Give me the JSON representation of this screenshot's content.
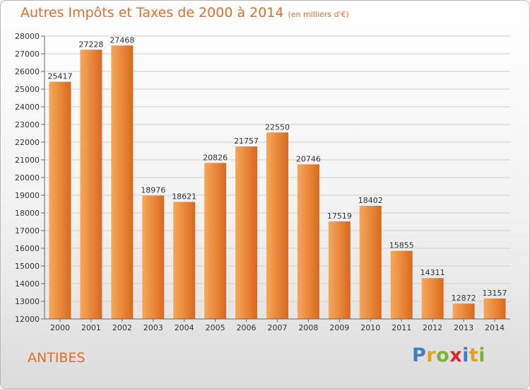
{
  "title": "Autres Impôts et Taxes de 2000 à 2014",
  "unit_note": "(en milliers d'€)",
  "city": "ANTIBES",
  "brand": {
    "letters": [
      {
        "ch": "P",
        "color": "#3f7fc8"
      },
      {
        "ch": "r",
        "color": "#e6a01e"
      },
      {
        "ch": "o",
        "color": "#7bb431"
      },
      {
        "ch": "x",
        "color": "#d9262c"
      },
      {
        "ch": "i",
        "color": "#3f7fc8"
      },
      {
        "ch": "t",
        "color": "#e6a01e"
      },
      {
        "ch": "i",
        "color": "#7bb431"
      }
    ]
  },
  "colors": {
    "accent": "#e0702a",
    "bar_light": "#f7a85a",
    "bar_dark": "#d9691e",
    "grid": "#cfcfcf"
  },
  "chart_data": {
    "type": "bar",
    "categories": [
      "2000",
      "2001",
      "2002",
      "2003",
      "2004",
      "2005",
      "2006",
      "2007",
      "2008",
      "2009",
      "2010",
      "2011",
      "2012",
      "2013",
      "2014"
    ],
    "values": [
      25417,
      27228,
      27468,
      18976,
      18621,
      20826,
      21757,
      22550,
      20746,
      17519,
      18402,
      15855,
      14311,
      12872,
      13157
    ],
    "ylim": [
      12000,
      28000
    ],
    "yticks": [
      12000,
      13000,
      14000,
      15000,
      16000,
      17000,
      18000,
      19000,
      20000,
      21000,
      22000,
      23000,
      24000,
      25000,
      26000,
      27000,
      28000
    ],
    "grid": true
  }
}
